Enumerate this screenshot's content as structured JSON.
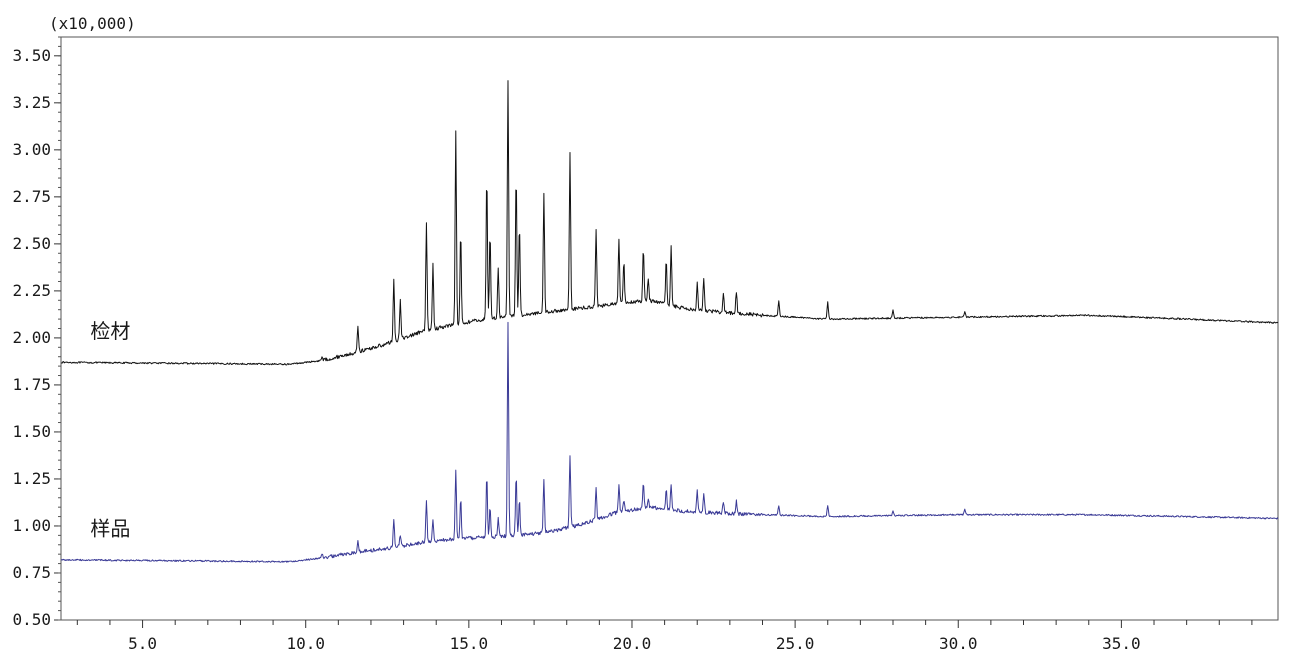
{
  "chart_data": {
    "type": "line",
    "multiplier_label": "(x10,000)",
    "xlim": [
      2.5,
      39.8
    ],
    "ylim": [
      0.5,
      3.6
    ],
    "x_ticks": [
      5.0,
      10.0,
      15.0,
      20.0,
      25.0,
      30.0,
      35.0
    ],
    "x_tick_labels": [
      "5.0",
      "10.0",
      "15.0",
      "20.0",
      "25.0",
      "30.0",
      "35.0"
    ],
    "y_ticks": [
      0.5,
      0.75,
      1.0,
      1.25,
      1.5,
      1.75,
      2.0,
      2.25,
      2.5,
      2.75,
      3.0,
      3.25,
      3.5
    ],
    "y_tick_labels": [
      "0.50",
      "0.75",
      "1.00",
      "1.25",
      "1.50",
      "1.75",
      "2.00",
      "2.25",
      "2.50",
      "2.75",
      "3.00",
      "3.25",
      "3.50"
    ],
    "grid": false,
    "series": [
      {
        "name": "检材",
        "color": "#111111",
        "label_at": [
          3.4,
          2.0
        ],
        "baseline": [
          [
            2.5,
            1.87
          ],
          [
            9.5,
            1.86
          ],
          [
            10.5,
            1.88
          ],
          [
            11.5,
            1.92
          ],
          [
            12.5,
            1.97
          ],
          [
            13.5,
            2.03
          ],
          [
            14.5,
            2.07
          ],
          [
            15.5,
            2.1
          ],
          [
            16.5,
            2.12
          ],
          [
            17.5,
            2.14
          ],
          [
            18.5,
            2.16
          ],
          [
            19.5,
            2.18
          ],
          [
            20.5,
            2.2
          ],
          [
            21.5,
            2.16
          ],
          [
            22.5,
            2.14
          ],
          [
            24.0,
            2.12
          ],
          [
            26.0,
            2.1
          ],
          [
            30.0,
            2.11
          ],
          [
            34.0,
            2.12
          ],
          [
            37.0,
            2.1
          ],
          [
            39.8,
            2.08
          ]
        ],
        "peaks": [
          [
            10.5,
            1.9
          ],
          [
            11.6,
            2.07
          ],
          [
            12.7,
            2.32
          ],
          [
            12.9,
            2.2
          ],
          [
            13.7,
            2.61
          ],
          [
            13.9,
            2.39
          ],
          [
            14.6,
            3.11
          ],
          [
            14.75,
            2.56
          ],
          [
            15.55,
            2.88
          ],
          [
            15.65,
            2.56
          ],
          [
            15.9,
            2.37
          ],
          [
            16.2,
            3.36
          ],
          [
            16.45,
            2.88
          ],
          [
            16.55,
            2.6
          ],
          [
            17.3,
            2.77
          ],
          [
            18.1,
            2.98
          ],
          [
            18.9,
            2.58
          ],
          [
            19.6,
            2.53
          ],
          [
            19.75,
            2.41
          ],
          [
            20.35,
            2.48
          ],
          [
            20.5,
            2.32
          ],
          [
            21.05,
            2.42
          ],
          [
            21.2,
            2.49
          ],
          [
            22.0,
            2.29
          ],
          [
            22.2,
            2.32
          ],
          [
            22.8,
            2.24
          ],
          [
            23.2,
            2.25
          ],
          [
            24.5,
            2.2
          ],
          [
            26.0,
            2.19
          ],
          [
            28.0,
            2.15
          ],
          [
            30.2,
            2.14
          ]
        ],
        "noise": 0.008
      },
      {
        "name": "样品",
        "color": "#3a3a96",
        "label_at": [
          3.4,
          0.95
        ],
        "baseline": [
          [
            2.5,
            0.82
          ],
          [
            9.5,
            0.81
          ],
          [
            10.5,
            0.83
          ],
          [
            11.5,
            0.86
          ],
          [
            12.5,
            0.88
          ],
          [
            13.5,
            0.91
          ],
          [
            14.5,
            0.93
          ],
          [
            15.5,
            0.94
          ],
          [
            16.5,
            0.95
          ],
          [
            17.5,
            0.97
          ],
          [
            18.5,
            1.01
          ],
          [
            19.5,
            1.07
          ],
          [
            20.5,
            1.1
          ],
          [
            21.5,
            1.08
          ],
          [
            22.5,
            1.07
          ],
          [
            24.0,
            1.06
          ],
          [
            26.0,
            1.05
          ],
          [
            30.0,
            1.06
          ],
          [
            34.0,
            1.06
          ],
          [
            37.0,
            1.05
          ],
          [
            39.8,
            1.04
          ]
        ],
        "peaks": [
          [
            10.5,
            0.85
          ],
          [
            11.6,
            0.93
          ],
          [
            12.7,
            1.03
          ],
          [
            12.9,
            0.95
          ],
          [
            13.7,
            1.13
          ],
          [
            13.9,
            1.04
          ],
          [
            14.6,
            1.3
          ],
          [
            14.75,
            1.15
          ],
          [
            15.55,
            1.27
          ],
          [
            15.65,
            1.1
          ],
          [
            15.9,
            1.04
          ],
          [
            16.2,
            2.08
          ],
          [
            16.45,
            1.27
          ],
          [
            16.55,
            1.14
          ],
          [
            17.3,
            1.25
          ],
          [
            18.1,
            1.38
          ],
          [
            18.9,
            1.2
          ],
          [
            19.6,
            1.22
          ],
          [
            19.75,
            1.14
          ],
          [
            20.35,
            1.23
          ],
          [
            20.5,
            1.15
          ],
          [
            21.05,
            1.19
          ],
          [
            21.2,
            1.22
          ],
          [
            22.0,
            1.19
          ],
          [
            22.2,
            1.18
          ],
          [
            22.8,
            1.13
          ],
          [
            23.2,
            1.13
          ],
          [
            24.5,
            1.11
          ],
          [
            26.0,
            1.11
          ],
          [
            28.0,
            1.08
          ],
          [
            30.2,
            1.09
          ]
        ],
        "noise": 0.008
      }
    ]
  }
}
